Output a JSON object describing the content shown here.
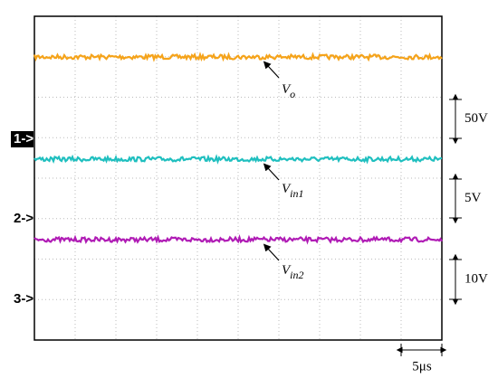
{
  "channels": [
    {
      "marker": "1->",
      "color": "#f5a31a",
      "label": "V",
      "subscript": "o",
      "scale": "50V"
    },
    {
      "marker": "2->",
      "color": "#1fbfbf",
      "label": "V",
      "subscript": "in1",
      "scale": "5V"
    },
    {
      "marker": "3->",
      "color": "#b01cb5",
      "label": "V",
      "subscript": "in2",
      "scale": "10V"
    }
  ],
  "time_scale": "5μs"
}
